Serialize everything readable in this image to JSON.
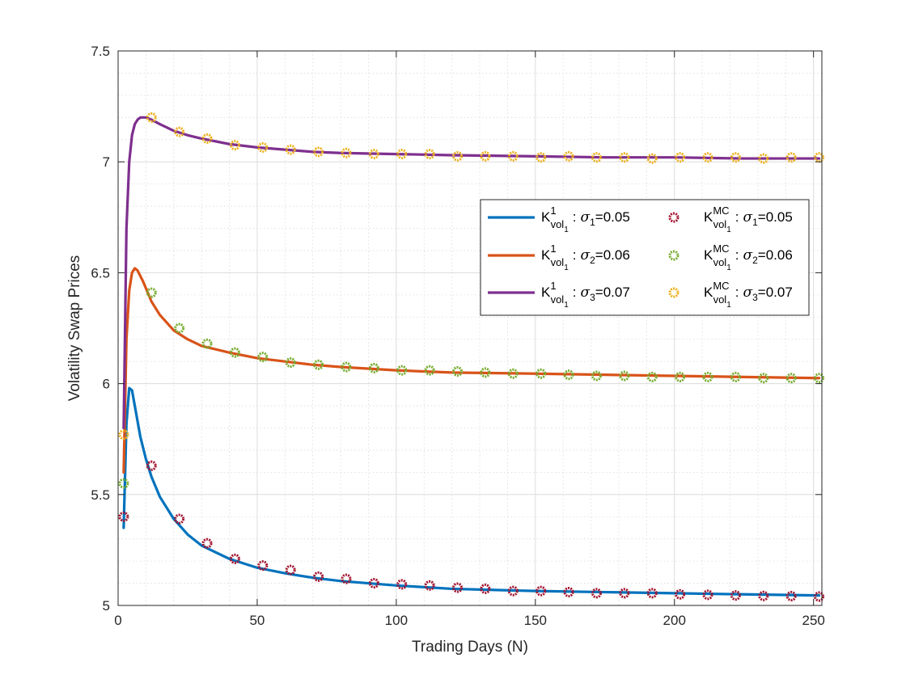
{
  "chart_data": {
    "type": "line",
    "xlabel": "Trading Days (N)",
    "ylabel": "Volatility Swap Prices",
    "xlim": [
      0,
      253
    ],
    "ylim": [
      5,
      7.5
    ],
    "xticks": [
      0,
      50,
      100,
      150,
      200,
      250
    ],
    "yticks": [
      5,
      5.5,
      6,
      6.5,
      7,
      7.5
    ],
    "xtick_labels": [
      "0",
      "50",
      "100",
      "150",
      "200",
      "250"
    ],
    "ytick_labels": [
      "5",
      "5.5",
      "6",
      "6.5",
      "7",
      "7.5"
    ],
    "grid": true,
    "minor_grid": true,
    "legend_position": "upper-right",
    "series": [
      {
        "name": "K_vol1^1 : σ1=0.05",
        "kind": "line",
        "color": "#0072BD",
        "legend": {
          "K": "K",
          "sup": "1",
          "sub": "vol",
          "subsub": "1",
          "sigma": "σ",
          "sigma_sub": "1",
          "value": "=0.05"
        },
        "x": [
          2,
          3,
          4,
          5,
          6,
          8,
          10,
          12,
          15,
          20,
          25,
          30,
          40,
          50,
          60,
          70,
          80,
          100,
          120,
          150,
          175,
          200,
          225,
          252
        ],
        "y": [
          5.35,
          5.82,
          5.98,
          5.97,
          5.9,
          5.76,
          5.66,
          5.58,
          5.49,
          5.39,
          5.32,
          5.27,
          5.21,
          5.17,
          5.145,
          5.125,
          5.11,
          5.09,
          5.075,
          5.065,
          5.06,
          5.055,
          5.05,
          5.045
        ]
      },
      {
        "name": "K_vol1^1 : σ2=0.06",
        "kind": "line",
        "color": "#D95319",
        "legend": {
          "K": "K",
          "sup": "1",
          "sub": "vol",
          "subsub": "1",
          "sigma": "σ",
          "sigma_sub": "2",
          "value": "=0.06"
        },
        "x": [
          2,
          3,
          4,
          5,
          6,
          7,
          9,
          12,
          15,
          20,
          25,
          30,
          40,
          50,
          60,
          70,
          80,
          100,
          120,
          150,
          175,
          200,
          225,
          252
        ],
        "y": [
          5.6,
          6.2,
          6.42,
          6.5,
          6.52,
          6.51,
          6.46,
          6.37,
          6.31,
          6.24,
          6.2,
          6.17,
          6.14,
          6.115,
          6.1,
          6.085,
          6.075,
          6.06,
          6.05,
          6.045,
          6.04,
          6.035,
          6.03,
          6.025
        ]
      },
      {
        "name": "K_vol1^1 : σ3=0.07",
        "kind": "line",
        "color": "#7E2F8E",
        "legend": {
          "K": "K",
          "sup": "1",
          "sub": "vol",
          "subsub": "1",
          "sigma": "σ",
          "sigma_sub": "3",
          "value": "=0.07"
        },
        "x": [
          2,
          3,
          4,
          5,
          6,
          7,
          8,
          10,
          12,
          15,
          20,
          25,
          30,
          40,
          50,
          60,
          70,
          80,
          100,
          120,
          150,
          175,
          200,
          225,
          252
        ],
        "y": [
          5.8,
          6.7,
          7.0,
          7.12,
          7.17,
          7.19,
          7.2,
          7.2,
          7.19,
          7.17,
          7.14,
          7.12,
          7.105,
          7.08,
          7.065,
          7.055,
          7.045,
          7.04,
          7.035,
          7.03,
          7.025,
          7.02,
          7.02,
          7.015,
          7.015
        ]
      },
      {
        "name": "K_vol1^MC : σ1=0.05",
        "kind": "scatter",
        "color": "#A2142F",
        "legend": {
          "K": "K",
          "sup": "MC",
          "sub": "vol",
          "subsub": "1",
          "sigma": "σ",
          "sigma_sub": "1",
          "value": "=0.05"
        },
        "x": [
          2,
          12,
          22,
          32,
          42,
          52,
          62,
          72,
          82,
          92,
          102,
          112,
          122,
          132,
          142,
          152,
          162,
          172,
          182,
          192,
          202,
          212,
          222,
          232,
          242,
          252
        ],
        "y": [
          5.4,
          5.63,
          5.39,
          5.28,
          5.21,
          5.18,
          5.16,
          5.13,
          5.12,
          5.1,
          5.095,
          5.09,
          5.08,
          5.075,
          5.065,
          5.065,
          5.06,
          5.055,
          5.055,
          5.055,
          5.05,
          5.048,
          5.045,
          5.043,
          5.042,
          5.04
        ]
      },
      {
        "name": "K_vol1^MC : σ2=0.06",
        "kind": "scatter",
        "color": "#77AC30",
        "legend": {
          "K": "K",
          "sup": "MC",
          "sub": "vol",
          "subsub": "1",
          "sigma": "σ",
          "sigma_sub": "2",
          "value": "=0.06"
        },
        "x": [
          2,
          12,
          22,
          32,
          42,
          52,
          62,
          72,
          82,
          92,
          102,
          112,
          122,
          132,
          142,
          152,
          162,
          172,
          182,
          192,
          202,
          212,
          222,
          232,
          242,
          252
        ],
        "y": [
          5.55,
          6.41,
          6.25,
          6.18,
          6.14,
          6.12,
          6.095,
          6.085,
          6.075,
          6.07,
          6.06,
          6.06,
          6.055,
          6.05,
          6.045,
          6.045,
          6.04,
          6.035,
          6.035,
          6.03,
          6.03,
          6.03,
          6.03,
          6.025,
          6.025,
          6.025
        ]
      },
      {
        "name": "K_vol1^MC : σ3=0.07",
        "kind": "scatter",
        "color": "#EDB120",
        "legend": {
          "K": "K",
          "sup": "MC",
          "sub": "vol",
          "subsub": "1",
          "sigma": "σ",
          "sigma_sub": "3",
          "value": "=0.07"
        },
        "x": [
          2,
          12,
          22,
          32,
          42,
          52,
          62,
          72,
          82,
          92,
          102,
          112,
          122,
          132,
          142,
          152,
          162,
          172,
          182,
          192,
          202,
          212,
          222,
          232,
          242,
          252
        ],
        "y": [
          5.77,
          7.2,
          7.135,
          7.105,
          7.075,
          7.065,
          7.055,
          7.045,
          7.04,
          7.035,
          7.035,
          7.035,
          7.025,
          7.025,
          7.025,
          7.02,
          7.025,
          7.02,
          7.02,
          7.015,
          7.02,
          7.02,
          7.02,
          7.015,
          7.02,
          7.02
        ]
      }
    ]
  }
}
